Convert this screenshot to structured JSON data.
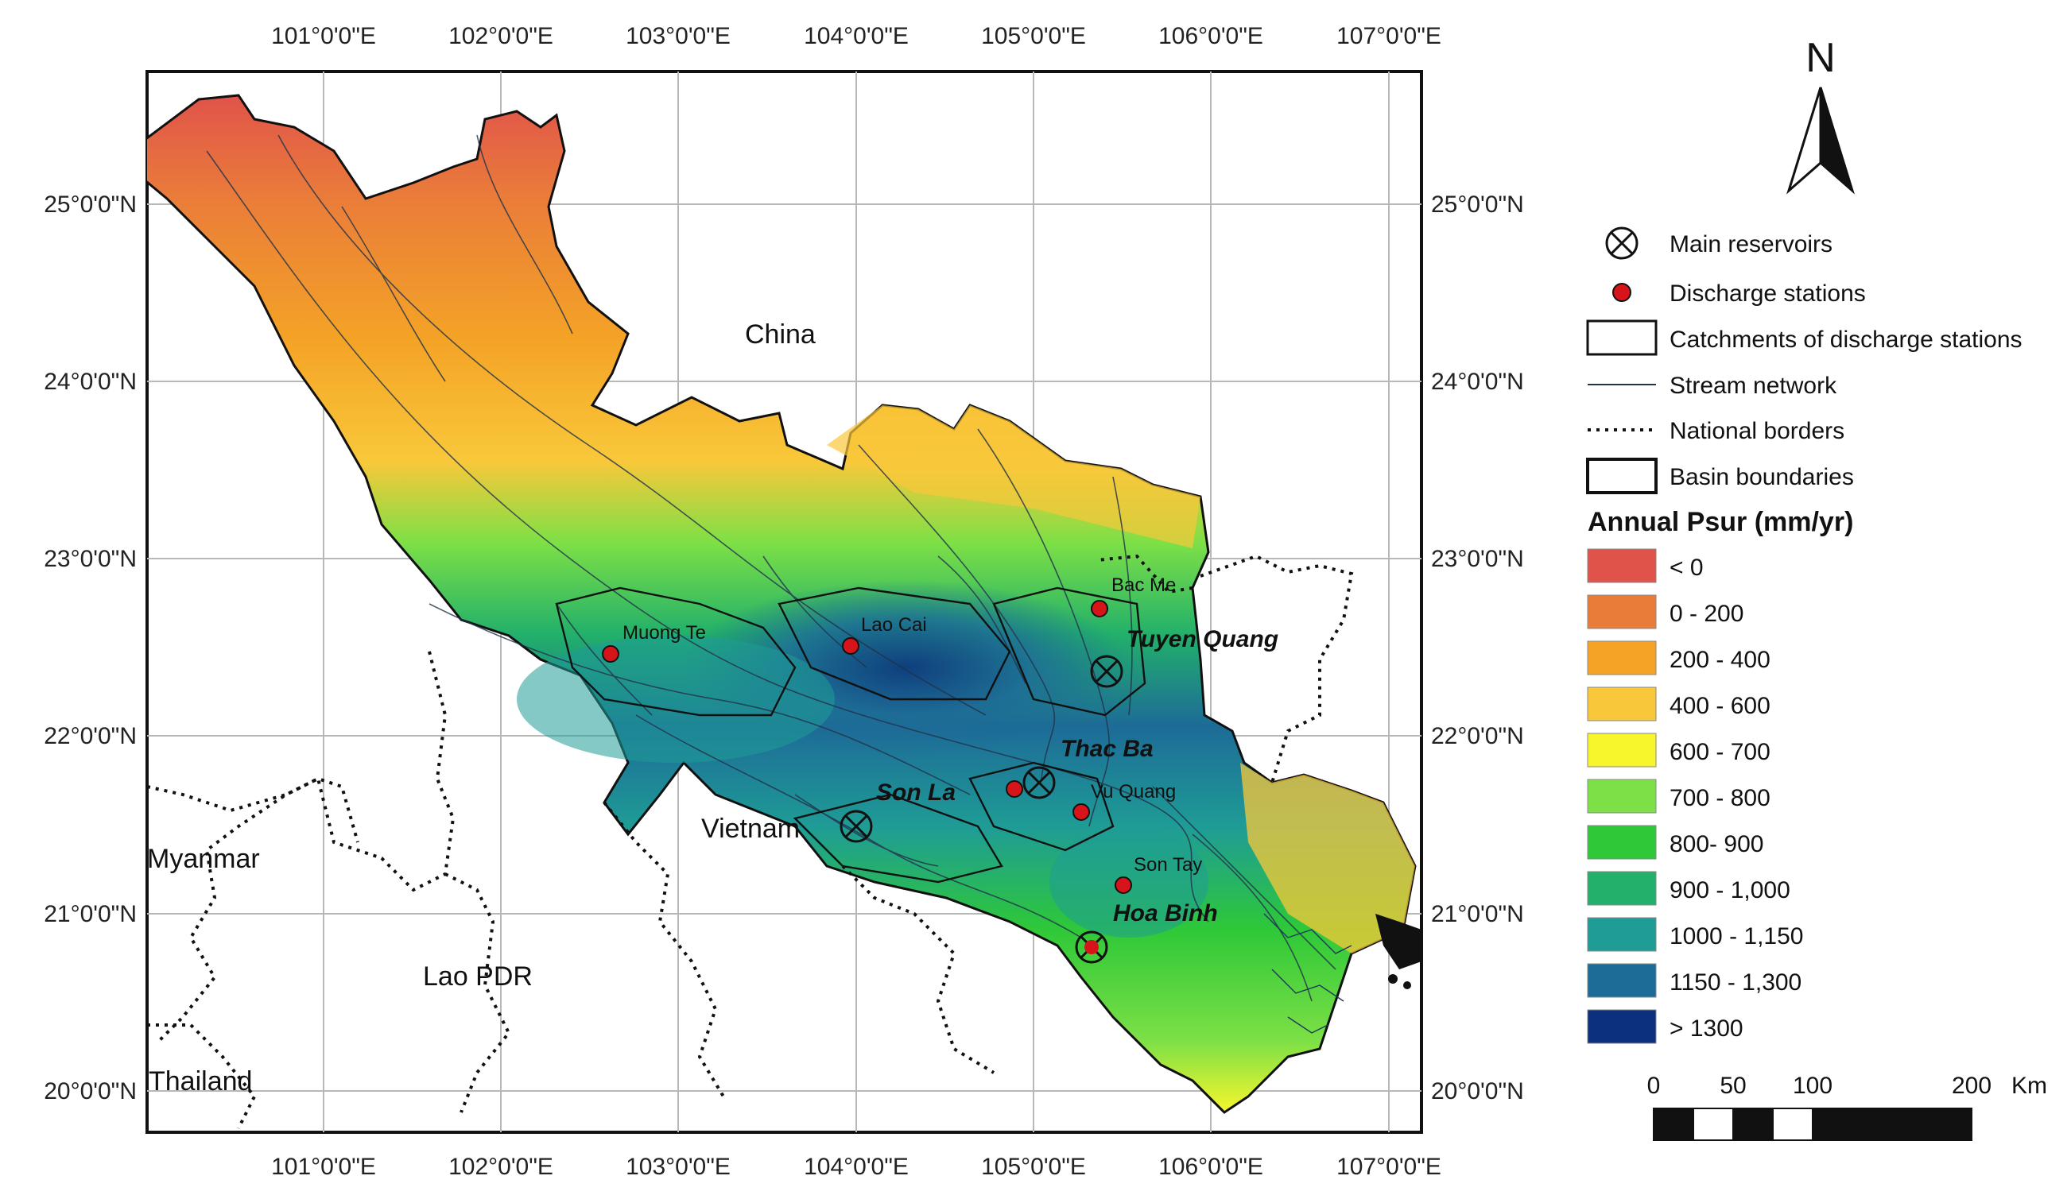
{
  "axes": {
    "lon_labels": [
      "101°0'0\"E",
      "102°0'0\"E",
      "103°0'0\"E",
      "104°0'0\"E",
      "105°0'0\"E",
      "106°0'0\"E",
      "107°0'0\"E"
    ],
    "lat_labels": [
      "25°0'0\"N",
      "24°0'0\"N",
      "23°0'0\"N",
      "22°0'0\"N",
      "21°0'0\"N",
      "20°0'0\"N"
    ]
  },
  "countries": {
    "china": "China",
    "vietnam": "Vietnam",
    "myanmar": "Myanmar",
    "lao": "Lao PDR",
    "thailand": "Thailand"
  },
  "stations": [
    {
      "name": "Muong Te"
    },
    {
      "name": "Lao Cai"
    },
    {
      "name": "Bac Me"
    },
    {
      "name": "Vu Quang"
    },
    {
      "name": "Son Tay"
    }
  ],
  "reservoirs": [
    {
      "name": "Tuyen Quang"
    },
    {
      "name": "Thac Ba"
    },
    {
      "name": "Son La"
    },
    {
      "name": "Hoa Binh"
    }
  ],
  "north_label": "N",
  "legend": {
    "symbols": [
      {
        "label": "Main reservoirs",
        "icon": "reservoir-icon"
      },
      {
        "label": "Discharge stations",
        "icon": "station-dot-icon"
      },
      {
        "label": "Catchments of discharge stations",
        "icon": "catchment-box-icon"
      },
      {
        "label": "Stream network",
        "icon": "stream-line-icon"
      },
      {
        "label": "National borders",
        "icon": "dotted-border-icon"
      },
      {
        "label": "Basin boundaries",
        "icon": "basin-box-icon"
      }
    ],
    "title": "Annual Psur (mm/yr)",
    "classes": [
      {
        "label": "< 0",
        "color": "#e0534a"
      },
      {
        "label": "0 - 200",
        "color": "#ea7c3a"
      },
      {
        "label": "200 - 400",
        "color": "#f4a326"
      },
      {
        "label": "400 - 600",
        "color": "#f9c83a"
      },
      {
        "label": "600 - 700",
        "color": "#f7f62d"
      },
      {
        "label": "700 - 800",
        "color": "#7de046"
      },
      {
        "label": "800- 900",
        "color": "#2ec838"
      },
      {
        "label": "900 - 1,000",
        "color": "#22b06a"
      },
      {
        "label": "1000 - 1,150",
        "color": "#1f9c96"
      },
      {
        "label": "1150 - 1,300",
        "color": "#1d6b97"
      },
      {
        "label": "> 1300",
        "color": "#0c2f7e"
      }
    ]
  },
  "scale_bar": {
    "labels": [
      "0",
      "50",
      "100",
      "200"
    ],
    "unit": "Km"
  }
}
